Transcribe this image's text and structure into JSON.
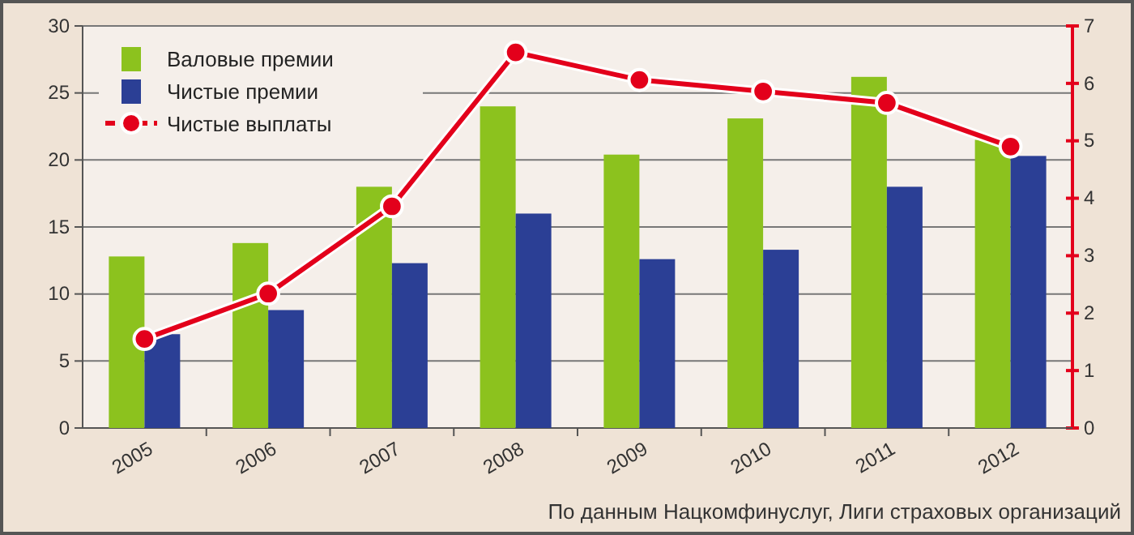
{
  "chart_data": {
    "type": "bar",
    "categories": [
      "2005",
      "2006",
      "2007",
      "2008",
      "2009",
      "2010",
      "2011",
      "2012"
    ],
    "series": [
      {
        "name": "Валовые премии",
        "color": "#8cc21e",
        "values": [
          12.8,
          13.8,
          18,
          24,
          20.4,
          23.1,
          26.2,
          21.5
        ]
      },
      {
        "name": "Чистые премии",
        "color": "#2b3f95",
        "values": [
          7,
          8.8,
          12.3,
          16,
          12.6,
          13.3,
          18,
          20.3
        ]
      },
      {
        "name": "Чистые выплаты",
        "type": "line",
        "axis": "y2",
        "color": "#e3001b",
        "marker": "circle",
        "line_style": "solid",
        "values": [
          1.55,
          2.34,
          3.86,
          6.54,
          6.06,
          5.86,
          5.66,
          4.9
        ]
      }
    ],
    "ylim": [
      0,
      30
    ],
    "yticks": [
      0,
      5,
      10,
      15,
      20,
      25,
      30
    ],
    "y2lim": [
      0,
      7
    ],
    "y2ticks": [
      0,
      1,
      2,
      3,
      4,
      5,
      6,
      7
    ],
    "grid": "y",
    "legend": "top left",
    "annotations": [
      "По данным Нацкомфинуслуг, Лиги страховых организаций"
    ]
  }
}
